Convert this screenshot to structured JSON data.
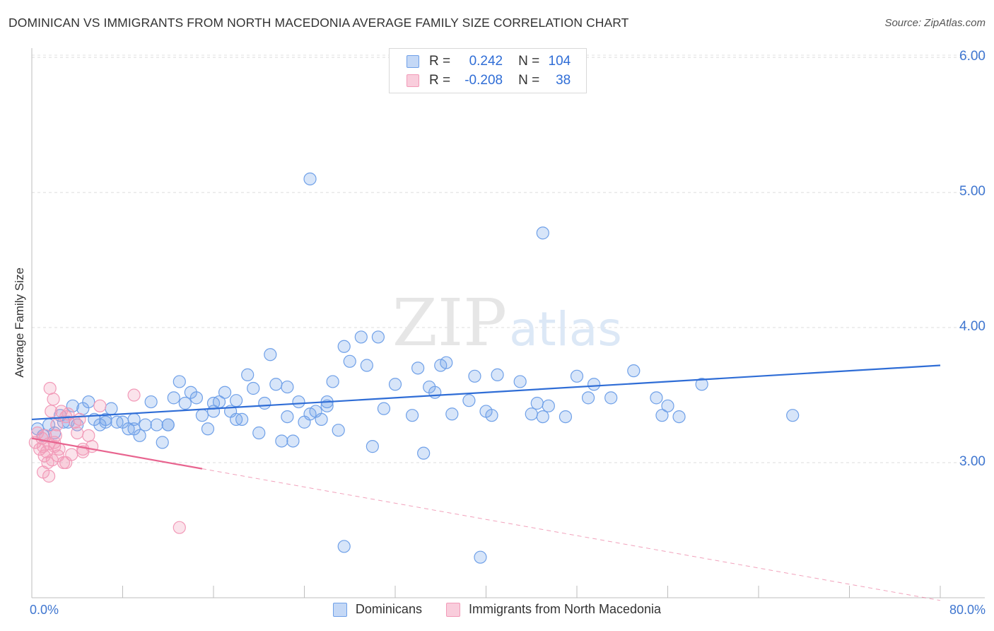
{
  "title": "DOMINICAN VS IMMIGRANTS FROM NORTH MACEDONIA AVERAGE FAMILY SIZE CORRELATION CHART",
  "source": "Source: ZipAtlas.com",
  "watermark": {
    "zip": "ZIP",
    "atlas": "atlas"
  },
  "legend": {
    "r_label": "R =",
    "n_label": "N =",
    "series": [
      {
        "r": "0.242",
        "n": "104"
      },
      {
        "r": "-0.208",
        "n": "38"
      }
    ]
  },
  "chart_data": {
    "type": "scatter",
    "title": "DOMINICAN VS IMMIGRANTS FROM NORTH MACEDONIA AVERAGE FAMILY SIZE CORRELATION CHART",
    "xlabel": "",
    "ylabel": "Average Family Size",
    "xlim": [
      0,
      80
    ],
    "ylim": [
      2.0,
      6.1
    ],
    "x_tick_labels": [
      "0.0%",
      "80.0%"
    ],
    "y_ticks": [
      3.0,
      4.0,
      5.0,
      6.0
    ],
    "y_tick_labels": [
      "3.00",
      "4.00",
      "5.00",
      "6.00"
    ],
    "grid": true,
    "legend_position": "top-center",
    "colors": {
      "blue": "#6fa0e8",
      "blue_line": "#2f6dd6",
      "pink": "#f29ab8",
      "pink_line": "#e8648f"
    },
    "series": [
      {
        "name": "Dominicans",
        "color": "#6fa0e8",
        "trend": {
          "x0": 0,
          "y0": 3.32,
          "x1": 80,
          "y1": 3.72,
          "solid_until": 80
        },
        "points": [
          [
            0.5,
            3.25
          ],
          [
            1.0,
            3.2
          ],
          [
            1.5,
            3.28
          ],
          [
            2.0,
            3.22
          ],
          [
            2.5,
            3.35
          ],
          [
            2.8,
            3.3
          ],
          [
            3.2,
            3.3
          ],
          [
            3.6,
            3.42
          ],
          [
            4.0,
            3.28
          ],
          [
            4.5,
            3.4
          ],
          [
            5.0,
            3.45
          ],
          [
            5.5,
            3.32
          ],
          [
            6.0,
            3.28
          ],
          [
            6.5,
            3.32
          ],
          [
            7.0,
            3.4
          ],
          [
            7.5,
            3.3
          ],
          [
            8.0,
            3.3
          ],
          [
            8.5,
            3.25
          ],
          [
            9.0,
            3.25
          ],
          [
            9.5,
            3.2
          ],
          [
            10.0,
            3.28
          ],
          [
            10.5,
            3.45
          ],
          [
            11.0,
            3.28
          ],
          [
            11.5,
            3.15
          ],
          [
            12.0,
            3.28
          ],
          [
            12.5,
            3.48
          ],
          [
            13.0,
            3.6
          ],
          [
            13.5,
            3.44
          ],
          [
            14.0,
            3.52
          ],
          [
            14.5,
            3.48
          ],
          [
            15.0,
            3.35
          ],
          [
            15.5,
            3.25
          ],
          [
            16.0,
            3.44
          ],
          [
            16.5,
            3.45
          ],
          [
            17.0,
            3.52
          ],
          [
            17.5,
            3.38
          ],
          [
            18.0,
            3.46
          ],
          [
            18.5,
            3.32
          ],
          [
            19.0,
            3.65
          ],
          [
            19.5,
            3.55
          ],
          [
            20.0,
            3.22
          ],
          [
            20.5,
            3.44
          ],
          [
            21.0,
            3.8
          ],
          [
            21.5,
            3.58
          ],
          [
            22.0,
            3.16
          ],
          [
            22.5,
            3.56
          ],
          [
            23.0,
            3.16
          ],
          [
            23.5,
            3.45
          ],
          [
            24.0,
            3.3
          ],
          [
            24.5,
            3.36
          ],
          [
            25.0,
            3.38
          ],
          [
            25.5,
            3.32
          ],
          [
            26.0,
            3.45
          ],
          [
            26.5,
            3.6
          ],
          [
            27.0,
            3.24
          ],
          [
            27.5,
            3.86
          ],
          [
            28.0,
            3.75
          ],
          [
            29.0,
            3.93
          ],
          [
            29.5,
            3.72
          ],
          [
            30.5,
            3.93
          ],
          [
            31.0,
            3.4
          ],
          [
            32.0,
            3.58
          ],
          [
            33.5,
            3.35
          ],
          [
            34.0,
            3.7
          ],
          [
            35.0,
            3.56
          ],
          [
            35.5,
            3.52
          ],
          [
            36.0,
            3.72
          ],
          [
            36.5,
            3.74
          ],
          [
            37.0,
            3.36
          ],
          [
            38.5,
            3.46
          ],
          [
            39.0,
            3.64
          ],
          [
            40.0,
            3.38
          ],
          [
            40.5,
            3.35
          ],
          [
            41.0,
            3.65
          ],
          [
            43.0,
            3.6
          ],
          [
            44.0,
            3.36
          ],
          [
            44.5,
            3.44
          ],
          [
            45.0,
            3.34
          ],
          [
            45.5,
            3.42
          ],
          [
            47.0,
            3.34
          ],
          [
            48.0,
            3.64
          ],
          [
            49.0,
            3.48
          ],
          [
            49.5,
            3.58
          ],
          [
            51.0,
            3.48
          ],
          [
            53.0,
            3.68
          ],
          [
            55.0,
            3.48
          ],
          [
            55.5,
            3.35
          ],
          [
            56.0,
            3.42
          ],
          [
            57.0,
            3.34
          ],
          [
            59.0,
            3.58
          ],
          [
            67.0,
            3.35
          ],
          [
            30.0,
            3.12
          ],
          [
            34.5,
            3.07
          ],
          [
            27.5,
            2.38
          ],
          [
            39.5,
            2.3
          ],
          [
            24.5,
            5.1
          ],
          [
            45.0,
            4.7
          ],
          [
            6.5,
            3.3
          ],
          [
            9.0,
            3.32
          ],
          [
            12.0,
            3.28
          ],
          [
            16.0,
            3.38
          ],
          [
            18.0,
            3.32
          ],
          [
            22.5,
            3.34
          ],
          [
            26.0,
            3.42
          ]
        ]
      },
      {
        "name": "Immigrants from North Macedonia",
        "color": "#f29ab8",
        "trend": {
          "x0": 0,
          "y0": 3.18,
          "x1": 80,
          "y1": 1.98,
          "solid_until": 15
        },
        "points": [
          [
            0.3,
            3.15
          ],
          [
            0.5,
            3.22
          ],
          [
            0.7,
            3.1
          ],
          [
            0.9,
            3.18
          ],
          [
            1.0,
            3.12
          ],
          [
            1.1,
            3.05
          ],
          [
            1.2,
            3.2
          ],
          [
            1.3,
            3.08
          ],
          [
            1.4,
            3.0
          ],
          [
            1.5,
            3.14
          ],
          [
            1.6,
            3.55
          ],
          [
            1.7,
            3.38
          ],
          [
            1.8,
            3.02
          ],
          [
            1.9,
            3.47
          ],
          [
            2.0,
            3.12
          ],
          [
            2.1,
            3.2
          ],
          [
            2.2,
            3.28
          ],
          [
            2.3,
            3.05
          ],
          [
            2.4,
            3.1
          ],
          [
            2.6,
            3.38
          ],
          [
            2.8,
            3.0
          ],
          [
            3.0,
            3.34
          ],
          [
            3.2,
            3.36
          ],
          [
            3.5,
            3.06
          ],
          [
            3.8,
            3.3
          ],
          [
            4.0,
            3.22
          ],
          [
            4.2,
            3.32
          ],
          [
            4.5,
            3.08
          ],
          [
            5.0,
            3.2
          ],
          [
            5.3,
            3.12
          ],
          [
            6.0,
            3.42
          ],
          [
            9.0,
            3.5
          ],
          [
            13.0,
            2.52
          ],
          [
            1.0,
            2.93
          ],
          [
            1.5,
            2.9
          ],
          [
            2.0,
            3.15
          ],
          [
            3.0,
            3.0
          ],
          [
            4.5,
            3.1
          ]
        ]
      }
    ]
  }
}
